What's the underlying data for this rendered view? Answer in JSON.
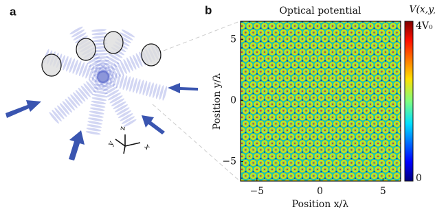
{
  "panel_a": {
    "label": "a",
    "axis_labels": [
      "x",
      "y",
      "z"
    ]
  },
  "chart_data": {
    "type": "heatmap",
    "panel_label": "b",
    "title": "Optical potential",
    "x_label": "Position x/λ",
    "y_label": "Position y/λ",
    "xlim": [
      -6.3,
      6.4
    ],
    "ylim": [
      -6.6,
      6.5
    ],
    "xticks": [
      {
        "value": -5,
        "label": "−5"
      },
      0,
      5
    ],
    "yticks": [
      {
        "value": -5,
        "label": "−5"
      },
      0,
      5
    ],
    "colorbar": {
      "title": "V(x,y)",
      "clim": [
        0,
        4
      ],
      "ticks": [
        0,
        {
          "value": 4,
          "label": "4V₀"
        }
      ]
    }
  }
}
